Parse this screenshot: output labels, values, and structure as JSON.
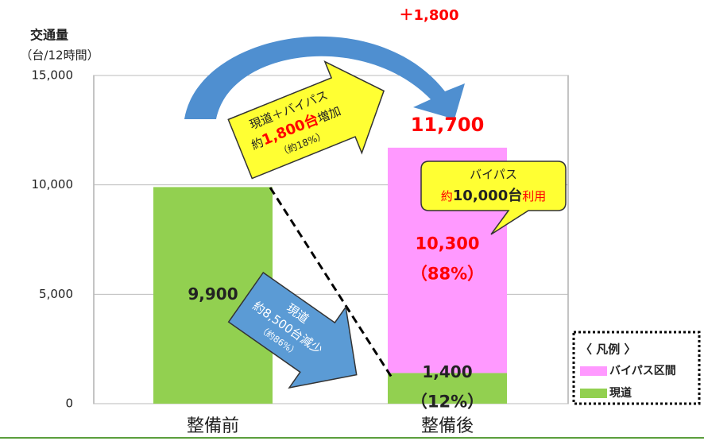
{
  "chart_data": {
    "type": "stacked_bar",
    "y_axis_title": [
      "交通量",
      "（台/12時間）"
    ],
    "categories": [
      "整備前",
      "整備後"
    ],
    "series": [
      {
        "name": "現道",
        "color": "#92d050",
        "values": [
          9900,
          1400
        ],
        "value_labels": [
          "9,900",
          "1,400"
        ],
        "share_labels": [
          null,
          "（12%）"
        ]
      },
      {
        "name": "バイパス区間",
        "color": "#ff99ff",
        "values": [
          null,
          10300
        ],
        "value_labels": [
          null,
          "10,300"
        ],
        "share_labels": [
          null,
          "（88%）"
        ]
      }
    ],
    "ylim": [
      0,
      15000
    ],
    "yticks": [
      0,
      {
        "value": 5000,
        "label": "5,000"
      },
      {
        "value": 10000,
        "label": "10,000"
      },
      {
        "value": 15000,
        "label": "15,000"
      }
    ],
    "grid": true,
    "total": {
      "value": 11700,
      "label": "11,700"
    },
    "legend_title": "〈 凡例 〉",
    "legend_position": "lower right",
    "annotations": {
      "increase": "＋1,800",
      "combined": {
        "line1": "現道＋バイパス",
        "line2a": "約",
        "line2b": "1,800台",
        "line2c": "増加",
        "line3": "（約18%）"
      },
      "bypass": {
        "line1": "バイパス",
        "line2a": "約",
        "line2b": "10,000台",
        "line2c": "利用"
      },
      "existing": {
        "line1": "現道",
        "line2": "約8,500台減少",
        "line3": "（約86%）"
      }
    }
  }
}
